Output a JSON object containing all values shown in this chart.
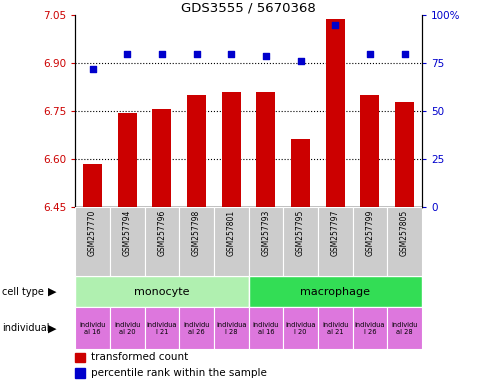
{
  "title": "GDS3555 / 5670368",
  "samples": [
    "GSM257770",
    "GSM257794",
    "GSM257796",
    "GSM257798",
    "GSM257801",
    "GSM257793",
    "GSM257795",
    "GSM257797",
    "GSM257799",
    "GSM257805"
  ],
  "transformed_count": [
    6.585,
    6.745,
    6.757,
    6.8,
    6.81,
    6.81,
    6.665,
    7.04,
    6.8,
    6.78
  ],
  "percentile_rank": [
    72,
    80,
    80,
    80,
    80,
    79,
    76,
    95,
    80,
    80
  ],
  "ylim_left": [
    6.45,
    7.05
  ],
  "ylim_right": [
    0,
    100
  ],
  "yticks_left": [
    6.45,
    6.6,
    6.75,
    6.9,
    7.05
  ],
  "yticks_right": [
    0,
    25,
    50,
    75,
    100
  ],
  "bar_color": "#cc0000",
  "dot_color": "#0000cc",
  "bar_bottom": 6.45,
  "monocyte_color": "#b0f0b0",
  "macrophage_color": "#33dd55",
  "individual_color": "#dd77dd",
  "ylabel_left_color": "#cc0000",
  "ylabel_right_color": "#0000cc",
  "grid_dotted_color": "#555555",
  "sample_bg_color": "#cccccc",
  "sample_border_color": "#ffffff"
}
